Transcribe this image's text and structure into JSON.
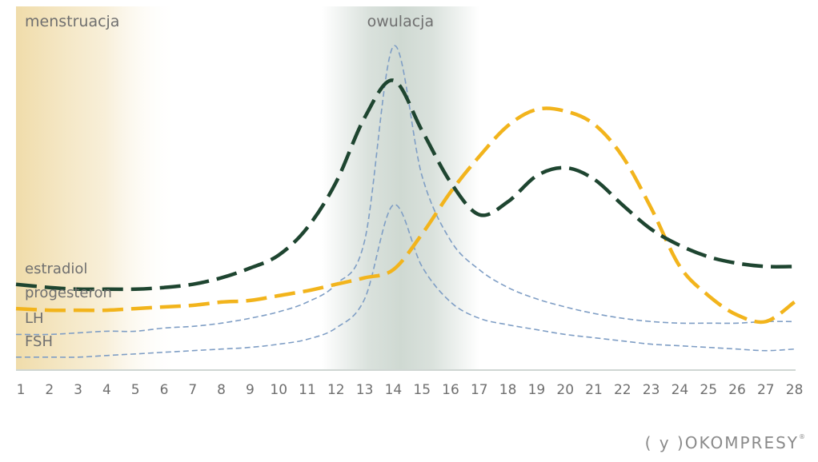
{
  "brand": {
    "text": "( y )OKOMPRESY",
    "reg": "®"
  },
  "chart_data": {
    "type": "line",
    "title": "",
    "xlabel": "",
    "ylabel": "",
    "x": [
      1,
      2,
      3,
      4,
      5,
      6,
      7,
      8,
      9,
      10,
      11,
      12,
      13,
      14,
      15,
      16,
      17,
      18,
      19,
      20,
      21,
      22,
      23,
      24,
      25,
      26,
      27,
      28
    ],
    "xlim": [
      1,
      28
    ],
    "ylim": [
      0,
      100
    ],
    "grid": false,
    "regions": [
      {
        "name": "menstruacja",
        "from": 1,
        "to": 6.5,
        "color": "#f1deb0"
      },
      {
        "name": "owulacja",
        "from": 11.5,
        "to": 17,
        "color": "#d3dcd6"
      }
    ],
    "series": [
      {
        "name": "estradiol",
        "color": "#1e4530",
        "style": "long-dash",
        "values": [
          26.5,
          25.5,
          25,
          25,
          25,
          25.5,
          26.5,
          28.5,
          31.5,
          35.5,
          44,
          58,
          78,
          89.5,
          74,
          58,
          48,
          52,
          60,
          62.5,
          59,
          51,
          43.5,
          38.5,
          35,
          33,
          32,
          32
        ]
      },
      {
        "name": "progesteron",
        "color": "#f2b41c",
        "style": "long-dash",
        "values": [
          19,
          18.5,
          18.5,
          18.5,
          19,
          19.5,
          20,
          21,
          21.5,
          23,
          24.5,
          26.5,
          28.5,
          31,
          42,
          55,
          66,
          75.5,
          80.5,
          80,
          76,
          66,
          50,
          32,
          23,
          17,
          15,
          21
        ]
      },
      {
        "name": "LH",
        "color": "#7f9ec5",
        "style": "short-dash",
        "values": [
          11,
          11,
          11.5,
          12,
          12,
          13,
          13.5,
          14.5,
          16,
          18,
          21,
          26.5,
          40,
          100,
          60,
          40,
          31,
          25.5,
          22,
          19.5,
          17.5,
          16,
          15,
          14.5,
          14.5,
          14.5,
          15,
          15
        ]
      },
      {
        "name": "FSH",
        "color": "#7f9ec5",
        "style": "short-dash",
        "values": [
          4,
          4,
          4,
          4.5,
          5,
          5.5,
          6,
          6.5,
          7,
          8,
          9.5,
          13,
          22,
          51,
          32,
          21,
          16,
          14,
          12.5,
          11,
          10,
          9,
          8,
          7.5,
          7,
          6.5,
          6,
          6.5
        ]
      }
    ]
  }
}
